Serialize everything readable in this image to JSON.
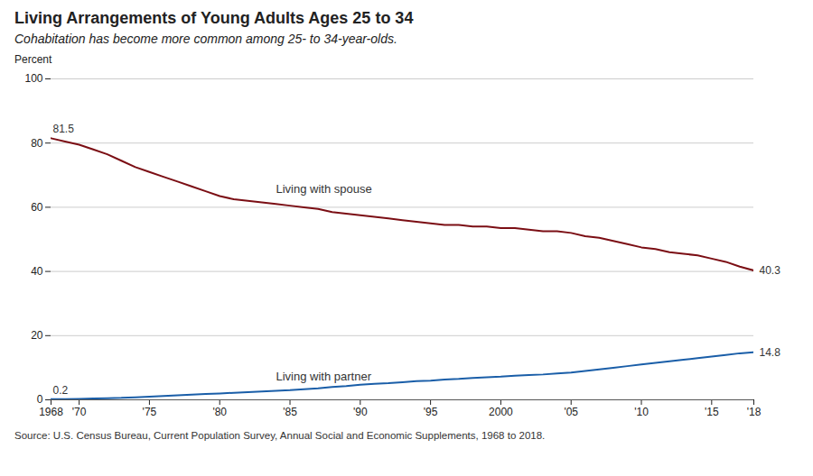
{
  "chart_data": {
    "type": "line",
    "title": "Living Arrangements of Young Adults Ages 25 to 34",
    "subtitle": "Cohabitation has become more common among 25- to 34-year-olds.",
    "source": "Source: U.S. Census Bureau, Current Population Survey, Annual Social and Economic Supplements, 1968 to 2018.",
    "ylabel": "Percent",
    "x": [
      1968,
      1969,
      1970,
      1971,
      1972,
      1973,
      1974,
      1975,
      1976,
      1977,
      1978,
      1979,
      1980,
      1981,
      1982,
      1983,
      1984,
      1985,
      1986,
      1987,
      1988,
      1989,
      1990,
      1991,
      1992,
      1993,
      1994,
      1995,
      1996,
      1997,
      1998,
      1999,
      2000,
      2001,
      2002,
      2003,
      2004,
      2005,
      2006,
      2007,
      2008,
      2009,
      2010,
      2011,
      2012,
      2013,
      2014,
      2015,
      2016,
      2017,
      2018
    ],
    "series": [
      {
        "name": "Living with spouse",
        "color": "#7b0e14",
        "values": [
          81.5,
          80.5,
          79.5,
          78.0,
          76.5,
          74.5,
          72.5,
          71.0,
          69.5,
          68.0,
          66.5,
          65.0,
          63.5,
          62.5,
          62.0,
          61.5,
          61.0,
          60.5,
          60.0,
          59.5,
          58.5,
          58.0,
          57.5,
          57.0,
          56.5,
          56.0,
          55.5,
          55.0,
          54.5,
          54.5,
          54.0,
          54.0,
          53.5,
          53.5,
          53.0,
          52.5,
          52.5,
          52.0,
          51.0,
          50.5,
          49.5,
          48.5,
          47.5,
          47.0,
          46.0,
          45.5,
          45.0,
          44.0,
          43.0,
          41.5,
          40.3
        ],
        "value_labels": [
          "81.5",
          null,
          null,
          null,
          null,
          null,
          null,
          null,
          null,
          null,
          null,
          null,
          null,
          null,
          null,
          null,
          null,
          null,
          null,
          null,
          null,
          null,
          null,
          null,
          null,
          null,
          null,
          null,
          null,
          null,
          null,
          null,
          null,
          null,
          null,
          null,
          null,
          null,
          null,
          null,
          null,
          null,
          null,
          null,
          null,
          null,
          null,
          null,
          null,
          null,
          "40.3"
        ]
      },
      {
        "name": "Living with partner",
        "color": "#1a5ea8",
        "values": [
          0.2,
          0.2,
          0.3,
          0.4,
          0.5,
          0.6,
          0.8,
          1.0,
          1.2,
          1.4,
          1.6,
          1.8,
          2.0,
          2.2,
          2.4,
          2.6,
          2.8,
          3.0,
          3.3,
          3.6,
          4.0,
          4.3,
          4.7,
          5.0,
          5.2,
          5.5,
          5.8,
          6.0,
          6.3,
          6.5,
          6.8,
          7.0,
          7.2,
          7.5,
          7.7,
          7.9,
          8.2,
          8.5,
          9.0,
          9.5,
          10.0,
          10.5,
          11.0,
          11.5,
          12.0,
          12.5,
          13.0,
          13.5,
          14.0,
          14.5,
          14.8
        ],
        "value_labels": [
          "0.2",
          null,
          null,
          null,
          null,
          null,
          null,
          null,
          null,
          null,
          null,
          null,
          null,
          null,
          null,
          null,
          null,
          null,
          null,
          null,
          null,
          null,
          null,
          null,
          null,
          null,
          null,
          null,
          null,
          null,
          null,
          null,
          null,
          null,
          null,
          null,
          null,
          null,
          null,
          null,
          null,
          null,
          null,
          null,
          null,
          null,
          null,
          null,
          null,
          null,
          "14.8"
        ]
      }
    ],
    "xlim": [
      1968,
      2018
    ],
    "xticks": [
      1968,
      {
        "value": 1970,
        "label": "'70"
      },
      {
        "value": 1975,
        "label": "'75"
      },
      {
        "value": 1980,
        "label": "'80"
      },
      {
        "value": 1985,
        "label": "'85"
      },
      {
        "value": 1990,
        "label": "'90"
      },
      {
        "value": 1995,
        "label": "'95"
      },
      2000,
      {
        "value": 2005,
        "label": "'05"
      },
      {
        "value": 2010,
        "label": "'10"
      },
      {
        "value": 2015,
        "label": "'15"
      },
      {
        "value": 2018,
        "label": "'18"
      }
    ],
    "ylim": [
      0,
      100
    ],
    "yticks": [
      0,
      20,
      40,
      60,
      80,
      100
    ],
    "grid": true
  }
}
